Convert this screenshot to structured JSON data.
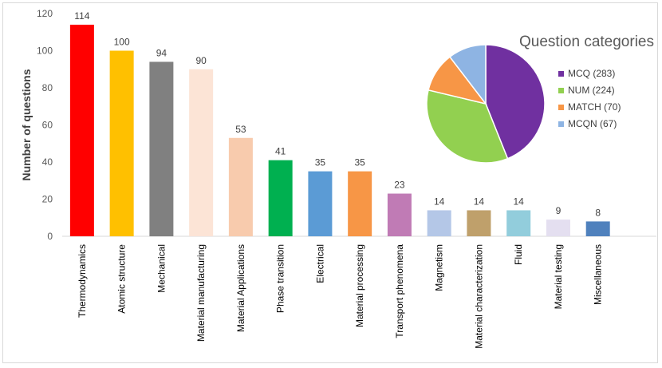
{
  "chart_data": [
    {
      "type": "bar",
      "title": "",
      "xlabel": "",
      "ylabel": "Number of questions",
      "ylim": [
        0,
        120
      ],
      "yticks": [
        0,
        20,
        40,
        60,
        80,
        100,
        120
      ],
      "grid": false,
      "categories": [
        "Thermodynamics",
        "Atomic structure",
        "Mechanical",
        "Material manufacturing",
        "Material Applications",
        "Phase transition",
        "Electrical",
        "Material processing",
        "Transport phenomena",
        "Magnetism",
        "Material characterization",
        "Fluid",
        "Material testing",
        "Miscellaneous"
      ],
      "values": [
        114,
        100,
        94,
        90,
        53,
        41,
        35,
        35,
        23,
        14,
        14,
        14,
        9,
        8
      ],
      "colors": [
        "#ff0000",
        "#ffc000",
        "#808080",
        "#fce4d6",
        "#f8cbad",
        "#00b050",
        "#5b9bd5",
        "#f79646",
        "#c07bb5",
        "#b4c7e7",
        "#bfa06b",
        "#92cddc",
        "#e4dff0",
        "#4f81bd"
      ]
    },
    {
      "type": "pie",
      "title": "Question categories",
      "legend": "right",
      "labels": [
        "MCQ (283)",
        "NUM (224)",
        "MATCH (70)",
        "MCQN (67)"
      ],
      "values": [
        283,
        224,
        70,
        67
      ],
      "colors": [
        "#7030a0",
        "#92d050",
        "#f79646",
        "#8eb4e3"
      ]
    }
  ]
}
